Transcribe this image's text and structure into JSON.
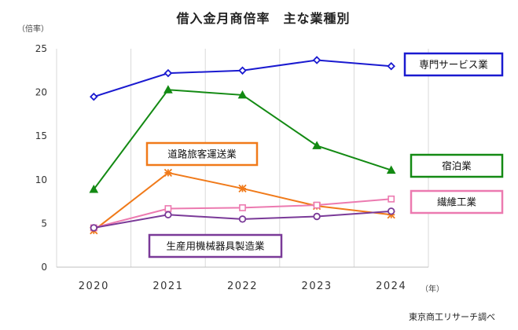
{
  "chart_data": {
    "type": "line",
    "title": "借入金月商倍率　主な業種別",
    "y_unit": "（倍率）",
    "x_unit": "（年）",
    "source": "東京商工リサーチ調べ",
    "x": [
      "2020",
      "2021",
      "2022",
      "2023",
      "2024"
    ],
    "ylim": [
      0,
      25
    ],
    "y_ticks": [
      0,
      5,
      10,
      15,
      20,
      25
    ],
    "grid": "vertical",
    "series": [
      {
        "name": "専門サービス業",
        "color": "#1a1ad0",
        "marker": "diamond",
        "values": [
          19.5,
          22.2,
          22.5,
          23.7,
          23.0
        ]
      },
      {
        "name": "宿泊業",
        "color": "#138a13",
        "marker": "triangle",
        "values": [
          8.9,
          20.3,
          19.7,
          13.9,
          11.1
        ]
      },
      {
        "name": "道路旅客運送業",
        "color": "#f07a1a",
        "marker": "star",
        "values": [
          4.2,
          10.8,
          9.0,
          7.0,
          6.0
        ]
      },
      {
        "name": "繊維工業",
        "color": "#ec7ab0",
        "marker": "square",
        "values": [
          4.5,
          6.7,
          6.8,
          7.1,
          7.8
        ]
      },
      {
        "name": "生産用機械器具製造業",
        "color": "#7a3a98",
        "marker": "circle",
        "values": [
          4.5,
          6.0,
          5.5,
          5.8,
          6.4
        ]
      }
    ]
  }
}
